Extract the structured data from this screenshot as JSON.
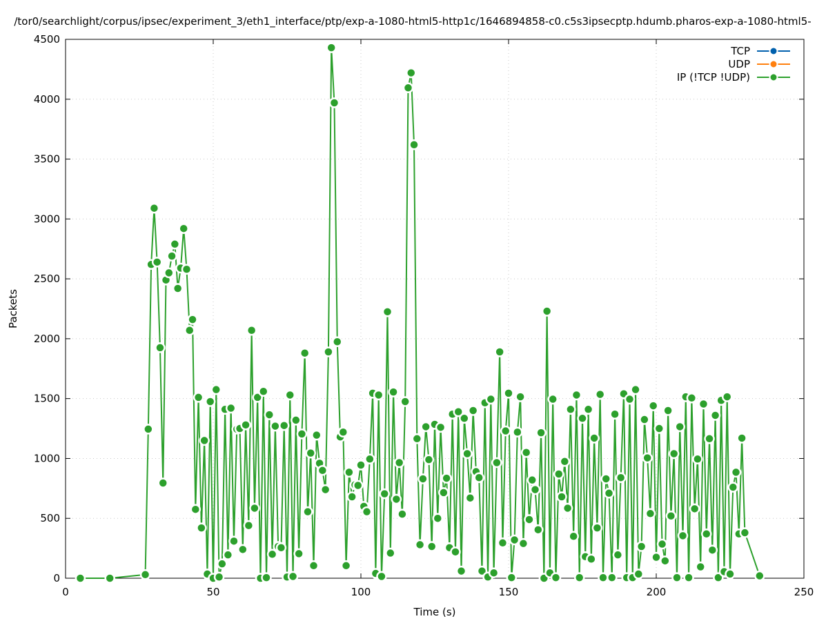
{
  "chart_data": {
    "type": "line",
    "title": "/tor0/searchlight/corpus/ipsec/experiment_3/eth1_interface/ptp/exp-a-1080-html5-http1c/1646894858-c0.c5s3ipsecptp.hdumb.pharos-exp-a-1080-html5-",
    "xlabel": "Time (s)",
    "ylabel": "Packets",
    "xlim": [
      0,
      250
    ],
    "ylim": [
      0,
      4500
    ],
    "xticks": [
      0,
      50,
      100,
      150,
      200,
      250
    ],
    "yticks": [
      0,
      500,
      1000,
      1500,
      2000,
      2500,
      3000,
      3500,
      4000,
      4500
    ],
    "grid": true,
    "legend_position": "top-right",
    "series": [
      {
        "name": "TCP",
        "color": "#0060ad",
        "x": [],
        "y": []
      },
      {
        "name": "UDP",
        "color": "#ff7f0e",
        "x": [],
        "y": []
      },
      {
        "name": "IP (!TCP  !UDP)",
        "color": "#2ca02c",
        "x": [
          5,
          15,
          27,
          28,
          29,
          30,
          31,
          32,
          33,
          34,
          35,
          36,
          37,
          38,
          39,
          40,
          41,
          42,
          43,
          44,
          45,
          46,
          47,
          48,
          49,
          50,
          51,
          52,
          53,
          54,
          55,
          56,
          57,
          58,
          59,
          60,
          61,
          62,
          63,
          64,
          65,
          66,
          67,
          68,
          69,
          70,
          71,
          72,
          73,
          74,
          75,
          76,
          77,
          78,
          79,
          80,
          81,
          82,
          83,
          84,
          85,
          86,
          87,
          88,
          89,
          90,
          91,
          92,
          93,
          94,
          95,
          96,
          97,
          98,
          99,
          100,
          101,
          102,
          103,
          104,
          105,
          106,
          107,
          108,
          109,
          110,
          111,
          112,
          113,
          114,
          115,
          116,
          117,
          118,
          119,
          120,
          121,
          122,
          123,
          124,
          125,
          126,
          127,
          128,
          129,
          130,
          131,
          132,
          133,
          134,
          135,
          136,
          137,
          138,
          139,
          140,
          141,
          142,
          143,
          144,
          145,
          146,
          147,
          148,
          149,
          150,
          151,
          152,
          153,
          154,
          155,
          156,
          157,
          158,
          159,
          160,
          161,
          162,
          163,
          164,
          165,
          166,
          167,
          168,
          169,
          170,
          171,
          172,
          173,
          174,
          175,
          176,
          177,
          178,
          179,
          180,
          181,
          182,
          183,
          184,
          185,
          186,
          187,
          188,
          189,
          190,
          191,
          192,
          193,
          194,
          195,
          196,
          197,
          198,
          199,
          200,
          201,
          202,
          203,
          204,
          205,
          206,
          207,
          208,
          209,
          210,
          211,
          212,
          213,
          214,
          215,
          216,
          217,
          218,
          219,
          220,
          221,
          222,
          223,
          224,
          225,
          226,
          227,
          228,
          229,
          230,
          235
        ],
        "y": [
          0,
          0,
          30,
          1245,
          2620,
          3090,
          2640,
          1925,
          795,
          2490,
          2550,
          2690,
          2790,
          2420,
          2590,
          2920,
          2580,
          2070,
          2160,
          575,
          1510,
          420,
          1150,
          35,
          1475,
          0,
          1575,
          10,
          120,
          1410,
          195,
          1420,
          310,
          1245,
          1250,
          240,
          1280,
          440,
          2070,
          585,
          1510,
          0,
          1560,
          5,
          1365,
          200,
          1270,
          265,
          255,
          1275,
          10,
          1530,
          15,
          1320,
          205,
          1205,
          1880,
          555,
          1045,
          105,
          1195,
          960,
          900,
          740,
          1890,
          4430,
          3970,
          1975,
          1180,
          1220,
          105,
          885,
          680,
          780,
          775,
          945,
          600,
          555,
          995,
          1545,
          40,
          1530,
          15,
          705,
          2225,
          210,
          1555,
          660,
          965,
          535,
          1475,
          4095,
          4220,
          3620,
          1165,
          280,
          830,
          1265,
          990,
          265,
          1285,
          500,
          1260,
          715,
          835,
          255,
          1370,
          220,
          1390,
          60,
          1335,
          1040,
          670,
          1400,
          890,
          840,
          60,
          1465,
          10,
          1495,
          45,
          965,
          1890,
          295,
          1230,
          1545,
          5,
          320,
          1220,
          1515,
          290,
          1050,
          490,
          820,
          740,
          405,
          1215,
          0,
          2230,
          45,
          1495,
          5,
          870,
          680,
          975,
          585,
          1410,
          350,
          1530,
          5,
          1335,
          180,
          1410,
          160,
          1170,
          420,
          1535,
          5,
          830,
          710,
          5,
          1370,
          195,
          840,
          1540,
          5,
          1495,
          5,
          1575,
          35,
          265,
          1325,
          1005,
          540,
          1440,
          175,
          1250,
          285,
          145,
          1400,
          520,
          1040,
          5,
          1265,
          355,
          1515,
          5,
          1505,
          580,
          995,
          95,
          1455,
          370,
          1165,
          235,
          1360,
          5,
          1485,
          55,
          1515,
          35,
          760,
          885,
          370,
          1170,
          380,
          20
        ]
      }
    ]
  }
}
